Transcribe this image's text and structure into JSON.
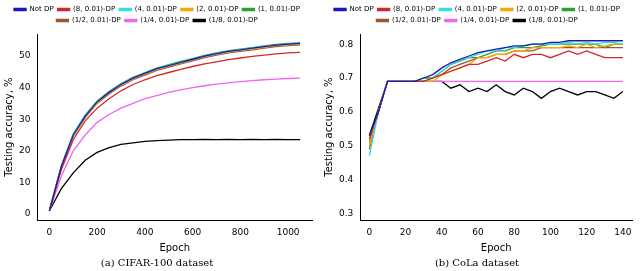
{
  "chart_data": [
    {
      "type": "line",
      "title": "(a) CIFAR-100 dataset",
      "x_label": "Epoch",
      "y_label": "Testing accuracy, %",
      "x": [
        0,
        50,
        100,
        150,
        200,
        250,
        300,
        350,
        400,
        450,
        500,
        550,
        600,
        650,
        700,
        750,
        800,
        850,
        900,
        950,
        1000,
        1050
      ],
      "series": [
        {
          "name": "Not DP",
          "color": "#1a1ab8",
          "values": [
            1,
            15,
            25,
            31,
            35.5,
            38.5,
            41,
            43,
            44.5,
            46,
            47,
            48,
            49,
            50,
            50.8,
            51.5,
            52,
            52.5,
            53,
            53.5,
            53.8,
            54
          ]
        },
        {
          "name": "(8, 0.01)-DP",
          "color": "#d62728",
          "values": [
            1,
            14,
            23.5,
            29.5,
            33.5,
            36.5,
            39,
            41,
            42.5,
            43.8,
            44.8,
            45.8,
            46.7,
            47.5,
            48.2,
            48.9,
            49.4,
            49.9,
            50.3,
            50.7,
            51,
            51.2
          ]
        },
        {
          "name": "(4, 0.01)-DP",
          "color": "#33dddd",
          "values": [
            1,
            15.2,
            25.2,
            31.2,
            35.6,
            38.6,
            41.1,
            43.1,
            44.6,
            46,
            47.1,
            48.1,
            49,
            50,
            50.9,
            51.6,
            52.1,
            52.6,
            53.1,
            53.5,
            53.9,
            54.1
          ]
        },
        {
          "name": "(2, 0.01)-DP",
          "color": "#ffa500",
          "values": [
            1,
            15,
            24.8,
            30.8,
            35.2,
            38.3,
            40.8,
            42.8,
            44.3,
            45.8,
            46.8,
            47.8,
            48.8,
            49.8,
            50.6,
            51.3,
            51.8,
            52.3,
            52.8,
            53.3,
            53.6,
            53.9
          ]
        },
        {
          "name": "(1, 0.01)-DP",
          "color": "#2ca02c",
          "values": [
            1,
            15.3,
            25.3,
            31.3,
            35.8,
            38.8,
            41.3,
            43.3,
            44.8,
            46.2,
            47.3,
            48.3,
            49.2,
            50.2,
            51,
            51.7,
            52.2,
            52.7,
            53.2,
            53.7,
            54,
            54.2
          ]
        },
        {
          "name": "(1/2, 0.01)-DP",
          "color": "#a0522d",
          "values": [
            1,
            14.8,
            24.6,
            30.5,
            35,
            38,
            40.5,
            42.5,
            44,
            45.5,
            46.5,
            47.5,
            48.5,
            49.5,
            50.3,
            51,
            51.5,
            52,
            52.5,
            53,
            53.3,
            53.6
          ]
        },
        {
          "name": "(1/4, 0.01)-DP",
          "color": "#ee66ee",
          "values": [
            1,
            12,
            20,
            25,
            29,
            31.5,
            33.5,
            35,
            36.5,
            37.5,
            38.5,
            39.3,
            40,
            40.6,
            41.1,
            41.5,
            41.9,
            42.2,
            42.5,
            42.7,
            42.9,
            43
          ]
        },
        {
          "name": "(1/8, 0.01)-DP",
          "color": "#000000",
          "values": [
            1,
            8,
            13,
            17,
            19.5,
            21,
            22,
            22.5,
            23,
            23.2,
            23.4,
            23.5,
            23.5,
            23.6,
            23.5,
            23.6,
            23.5,
            23.6,
            23.5,
            23.6,
            23.5,
            23.5
          ]
        }
      ],
      "xlim": [
        -50,
        1100
      ],
      "xticks": [
        0,
        200,
        400,
        600,
        800,
        1000
      ],
      "ylim": [
        -2,
        57
      ],
      "yticks": [
        0,
        10,
        20,
        30,
        40,
        50
      ],
      "grid": false,
      "legend": "top",
      "line_style": "solid"
    },
    {
      "type": "line",
      "title": "(b) CoLa dataset",
      "x_label": "Epoch",
      "y_label": "Testing accuracy, %",
      "x": [
        0,
        5,
        10,
        15,
        20,
        25,
        30,
        35,
        40,
        45,
        50,
        55,
        60,
        65,
        70,
        75,
        80,
        85,
        90,
        95,
        100,
        105,
        110,
        115,
        120,
        125,
        130,
        135,
        140
      ],
      "series": [
        {
          "name": "Not DP",
          "color": "#1a1ab8",
          "values": [
            0.53,
            0.6,
            0.69,
            0.69,
            0.69,
            0.69,
            0.7,
            0.71,
            0.73,
            0.745,
            0.755,
            0.765,
            0.775,
            0.78,
            0.785,
            0.79,
            0.795,
            0.795,
            0.8,
            0.8,
            0.805,
            0.805,
            0.81,
            0.81,
            0.81,
            0.81,
            0.81,
            0.81,
            0.81
          ]
        },
        {
          "name": "(8, 0.01)-DP",
          "color": "#d62728",
          "values": [
            0.52,
            0.6,
            0.69,
            0.69,
            0.69,
            0.69,
            0.69,
            0.7,
            0.71,
            0.72,
            0.73,
            0.74,
            0.74,
            0.75,
            0.76,
            0.75,
            0.77,
            0.76,
            0.77,
            0.77,
            0.76,
            0.77,
            0.78,
            0.77,
            0.78,
            0.77,
            0.76,
            0.76,
            0.76
          ]
        },
        {
          "name": "(4, 0.01)-DP",
          "color": "#33dddd",
          "values": [
            0.47,
            0.6,
            0.69,
            0.69,
            0.69,
            0.69,
            0.69,
            0.7,
            0.72,
            0.74,
            0.75,
            0.76,
            0.77,
            0.78,
            0.78,
            0.79,
            0.79,
            0.795,
            0.8,
            0.8,
            0.8,
            0.8,
            0.805,
            0.8,
            0.805,
            0.8,
            0.805,
            0.805,
            0.8
          ]
        },
        {
          "name": "(2, 0.01)-DP",
          "color": "#ffa500",
          "values": [
            0.5,
            0.6,
            0.69,
            0.69,
            0.69,
            0.69,
            0.69,
            0.69,
            0.71,
            0.72,
            0.73,
            0.74,
            0.76,
            0.76,
            0.77,
            0.77,
            0.78,
            0.78,
            0.79,
            0.79,
            0.79,
            0.79,
            0.795,
            0.79,
            0.8,
            0.79,
            0.795,
            0.8,
            0.8
          ]
        },
        {
          "name": "(1, 0.01)-DP",
          "color": "#2ca02c",
          "values": [
            0.51,
            0.6,
            0.69,
            0.69,
            0.69,
            0.69,
            0.7,
            0.7,
            0.72,
            0.74,
            0.75,
            0.76,
            0.76,
            0.77,
            0.78,
            0.78,
            0.79,
            0.79,
            0.79,
            0.795,
            0.8,
            0.8,
            0.8,
            0.8,
            0.8,
            0.8,
            0.79,
            0.8,
            0.8
          ]
        },
        {
          "name": "(1/2, 0.01)-DP",
          "color": "#a0522d",
          "values": [
            0.49,
            0.6,
            0.69,
            0.69,
            0.69,
            0.69,
            0.69,
            0.7,
            0.71,
            0.73,
            0.74,
            0.75,
            0.76,
            0.76,
            0.77,
            0.77,
            0.78,
            0.78,
            0.78,
            0.79,
            0.79,
            0.79,
            0.79,
            0.79,
            0.79,
            0.79,
            0.79,
            0.79,
            0.79
          ]
        },
        {
          "name": "(1/4, 0.01)-DP",
          "color": "#ee66ee",
          "values": [
            0.5,
            0.6,
            0.69,
            0.69,
            0.69,
            0.69,
            0.69,
            0.69,
            0.69,
            0.69,
            0.69,
            0.69,
            0.69,
            0.69,
            0.69,
            0.69,
            0.69,
            0.69,
            0.69,
            0.69,
            0.69,
            0.69,
            0.69,
            0.69,
            0.69,
            0.69,
            0.69,
            0.69,
            0.69
          ]
        },
        {
          "name": "(1/8, 0.01)-DP",
          "color": "#000000",
          "values": [
            0.53,
            0.61,
            0.69,
            0.69,
            0.69,
            0.69,
            0.69,
            0.69,
            0.69,
            0.67,
            0.68,
            0.66,
            0.67,
            0.66,
            0.68,
            0.66,
            0.65,
            0.67,
            0.66,
            0.64,
            0.66,
            0.67,
            0.66,
            0.65,
            0.66,
            0.66,
            0.65,
            0.64,
            0.66
          ]
        }
      ],
      "xlim": [
        -5,
        145
      ],
      "xticks": [
        0,
        20,
        40,
        60,
        80,
        100,
        120,
        140
      ],
      "ylim": [
        0.28,
        0.83
      ],
      "yticks": [
        0.3,
        0.4,
        0.5,
        0.6,
        0.7,
        0.8
      ],
      "grid": false,
      "legend": "top",
      "line_style": "solid"
    }
  ]
}
